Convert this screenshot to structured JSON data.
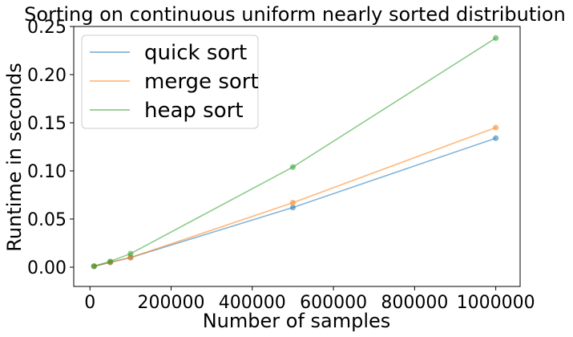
{
  "chart_data": {
    "type": "line",
    "title": "Sorting on continuous uniform nearly sorted distribution",
    "xlabel": "Number of samples",
    "ylabel": "Runtime in seconds",
    "x": [
      10000,
      50000,
      100000,
      500000,
      1000000
    ],
    "xlim": [
      -40000,
      1060000
    ],
    "ylim": [
      -0.02,
      0.25
    ],
    "xticks": [
      0,
      200000,
      400000,
      600000,
      800000,
      1000000
    ],
    "xtick_labels": [
      "0",
      "200000",
      "400000",
      "600000",
      "800000",
      "1000000"
    ],
    "yticks": [
      0.0,
      0.05,
      0.1,
      0.15,
      0.2,
      0.25
    ],
    "ytick_labels": [
      "0.00",
      "0.05",
      "0.10",
      "0.15",
      "0.20",
      "0.25"
    ],
    "grid": false,
    "legend_position": "top-left",
    "series": [
      {
        "name": "quick sort",
        "color": "#1f77b4",
        "values": [
          0.001,
          0.005,
          0.01,
          0.062,
          0.134
        ]
      },
      {
        "name": "merge sort",
        "color": "#ff7f0e",
        "values": [
          0.001,
          0.005,
          0.01,
          0.067,
          0.145
        ]
      },
      {
        "name": "heap sort",
        "color": "#2ca02c",
        "values": [
          0.001,
          0.006,
          0.014,
          0.104,
          0.238
        ]
      }
    ]
  }
}
